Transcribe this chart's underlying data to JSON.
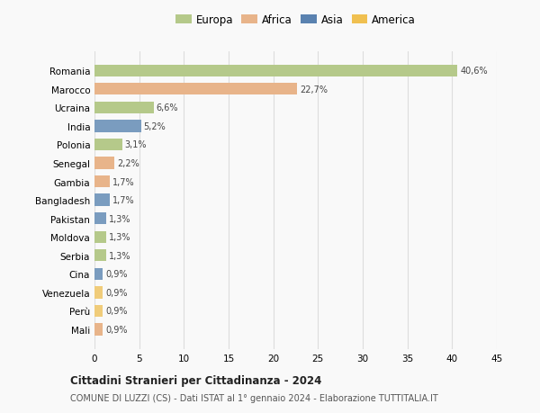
{
  "categories": [
    "Romania",
    "Marocco",
    "Ucraina",
    "India",
    "Polonia",
    "Senegal",
    "Gambia",
    "Bangladesh",
    "Pakistan",
    "Moldova",
    "Serbia",
    "Cina",
    "Venezuela",
    "Perù",
    "Mali"
  ],
  "values": [
    40.6,
    22.7,
    6.6,
    5.2,
    3.1,
    2.2,
    1.7,
    1.7,
    1.3,
    1.3,
    1.3,
    0.9,
    0.9,
    0.9,
    0.9
  ],
  "labels": [
    "40,6%",
    "22,7%",
    "6,6%",
    "5,2%",
    "3,1%",
    "2,2%",
    "1,7%",
    "1,7%",
    "1,3%",
    "1,3%",
    "1,3%",
    "0,9%",
    "0,9%",
    "0,9%",
    "0,9%"
  ],
  "continents": [
    "Europa",
    "Africa",
    "Europa",
    "Asia",
    "Europa",
    "Africa",
    "Africa",
    "Asia",
    "Asia",
    "Europa",
    "Europa",
    "Asia",
    "America",
    "America",
    "Africa"
  ],
  "colors": {
    "Europa": "#b5c98a",
    "Africa": "#e8b48a",
    "Asia": "#7a9cbf",
    "America": "#f0cc7a"
  },
  "legend_colors": {
    "Europa": "#b5c98a",
    "Africa": "#e8b48a",
    "Asia": "#5a82b0",
    "America": "#f0c050"
  },
  "title": "Cittadini Stranieri per Cittadinanza - 2024",
  "subtitle": "COMUNE DI LUZZI (CS) - Dati ISTAT al 1° gennaio 2024 - Elaborazione TUTTITALIA.IT",
  "xlim": [
    0,
    45
  ],
  "xticks": [
    0,
    5,
    10,
    15,
    20,
    25,
    30,
    35,
    40,
    45
  ],
  "background_color": "#f9f9f9",
  "grid_color": "#dddddd"
}
